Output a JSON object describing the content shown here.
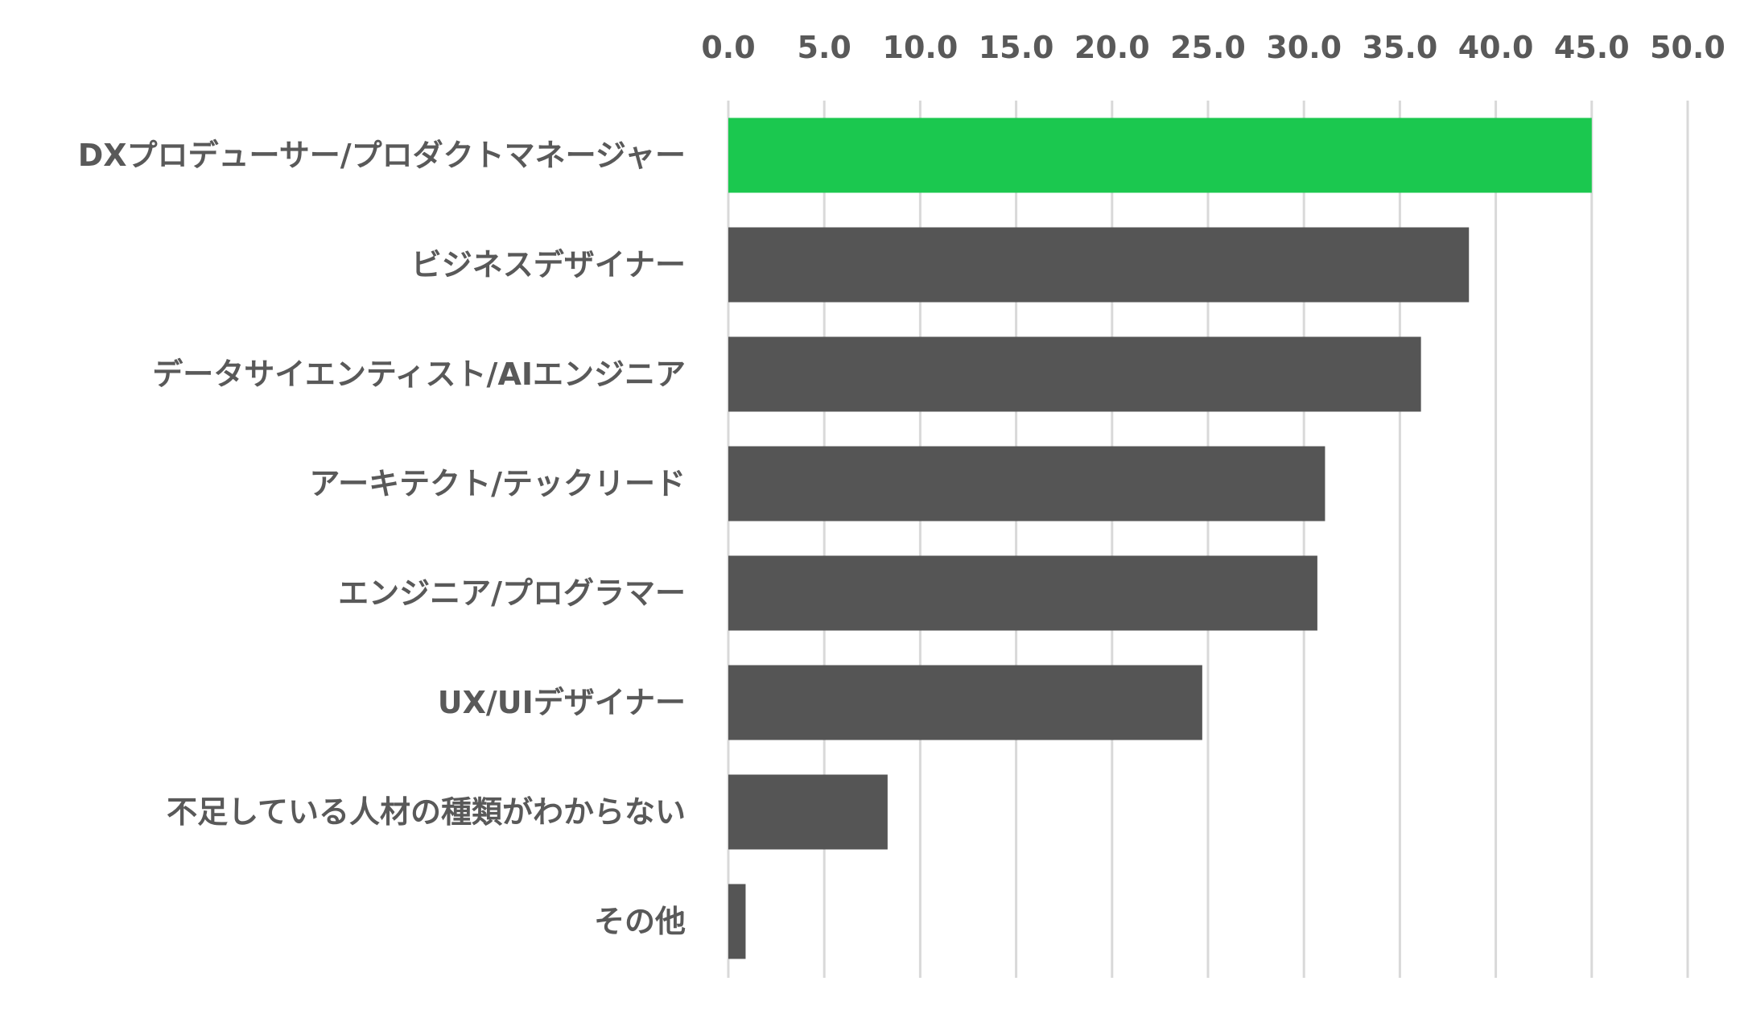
{
  "chart_data": {
    "type": "bar",
    "orientation": "horizontal",
    "title": "",
    "xlabel": "",
    "ylabel": "",
    "xlim": [
      0,
      50
    ],
    "tick_values": [
      0,
      5,
      10,
      15,
      20,
      25,
      30,
      35,
      40,
      45,
      50
    ],
    "tick_labels": [
      "0.0",
      "5.0",
      "10.0",
      "15.0",
      "20.0",
      "25.0",
      "30.0",
      "35.0",
      "40.0",
      "45.0",
      "50.0"
    ],
    "axis_position": "top",
    "grid": true,
    "legend": "none",
    "categories": [
      "DXプロデューサー/プロダクトマネージャー",
      "ビジネスデザイナー",
      "データサイエンティスト/AIエンジニア",
      "アーキテクト/テックリード",
      "エンジニア/プログラマー",
      "UX/UIデザイナー",
      "不足している人材の種類がわからない",
      "その他"
    ],
    "values": [
      45.0,
      38.6,
      36.1,
      31.1,
      30.7,
      24.7,
      8.3,
      0.9
    ],
    "colors": {
      "highlight": "#1bc84f",
      "default": "#555555",
      "text": "#595959",
      "grid": "#d9d9d9"
    },
    "highlight_index": 0
  }
}
